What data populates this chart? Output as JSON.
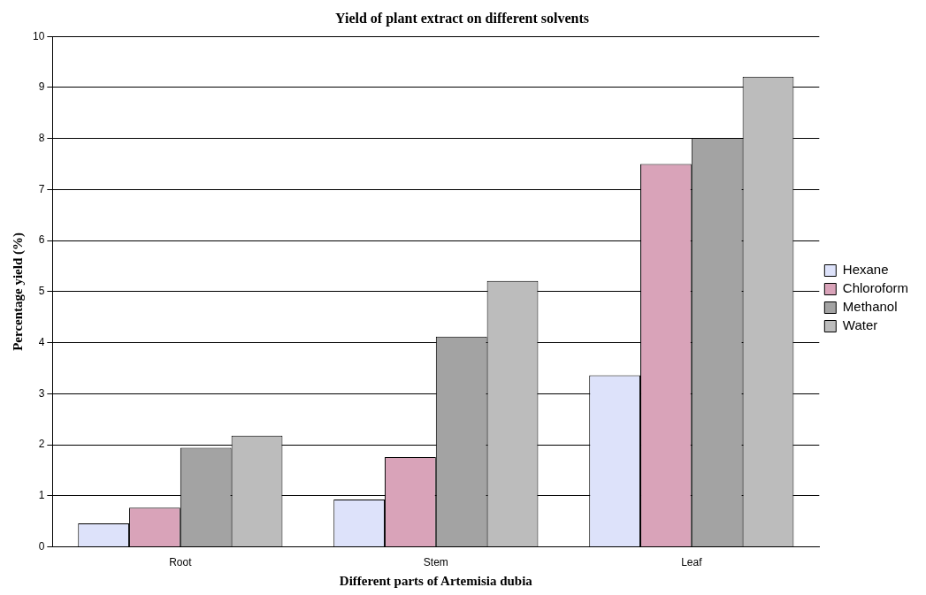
{
  "chart_data": {
    "type": "bar",
    "title": "Yield of plant extract on different solvents",
    "xlabel": "Different parts of Artemisia dubia",
    "ylabel": "Percentage yield (%)",
    "categories": [
      "Root",
      "Stem",
      "Leaf"
    ],
    "series": [
      {
        "name": "Hexane",
        "color": "#dde2fa",
        "values": [
          0.46,
          0.93,
          3.36
        ]
      },
      {
        "name": "Chloroform",
        "color": "#d9a3b9",
        "values": [
          0.77,
          1.76,
          7.5
        ]
      },
      {
        "name": "Methanol",
        "color": "#a3a3a3",
        "values": [
          1.94,
          4.12,
          8.01
        ]
      },
      {
        "name": "Water",
        "color": "#bcbcbc",
        "values": [
          2.18,
          5.21,
          9.21
        ]
      }
    ],
    "ylim": [
      0,
      10
    ],
    "yticks": [
      0,
      1,
      2,
      3,
      4,
      5,
      6,
      7,
      8,
      9,
      10
    ],
    "grid": "y",
    "legend": "right"
  }
}
